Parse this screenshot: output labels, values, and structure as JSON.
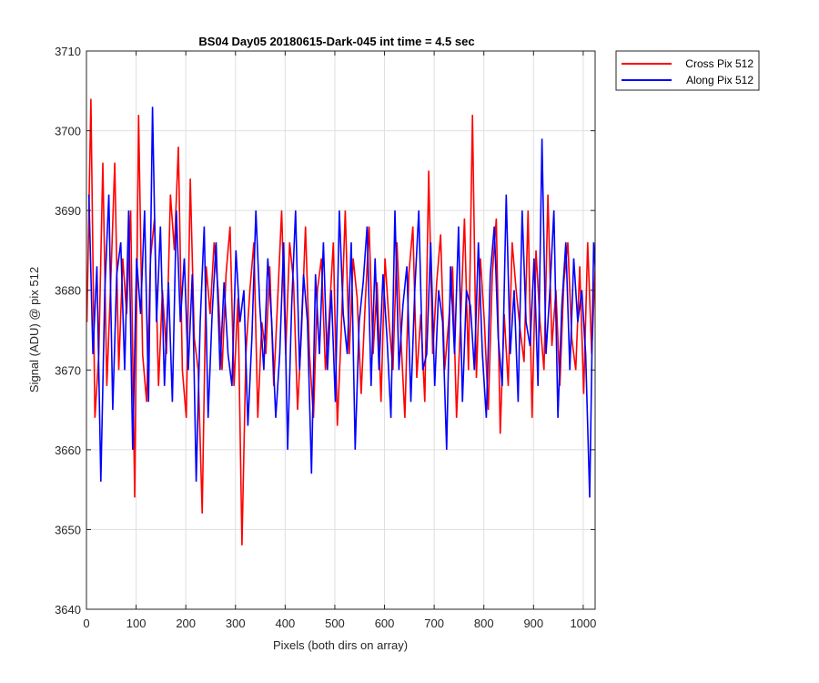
{
  "chart_data": {
    "type": "line",
    "title": "BS04 Day05 20180615-Dark-045 int time = 4.5 sec",
    "xlabel": "Pixels (both dirs on array)",
    "ylabel": "Signal (ADU) @ pix 512",
    "xlim": [
      0,
      1024
    ],
    "ylim": [
      3640,
      3710
    ],
    "xticks": [
      0,
      100,
      200,
      300,
      400,
      500,
      600,
      700,
      800,
      900,
      1000
    ],
    "yticks": [
      3640,
      3650,
      3660,
      3670,
      3680,
      3690,
      3700,
      3710
    ],
    "grid": true,
    "legend_position": "outside-top-right",
    "series": [
      {
        "name": "Cross Pix 512",
        "color": "#ff0000",
        "x_start": 1,
        "x_step": 8,
        "values": [
          3676,
          3704,
          3664,
          3672,
          3696,
          3668,
          3681,
          3696,
          3670,
          3684,
          3677,
          3690,
          3654,
          3702,
          3672,
          3666,
          3684,
          3689,
          3668,
          3680,
          3672,
          3692,
          3685,
          3698,
          3670,
          3664,
          3694,
          3674,
          3670,
          3652,
          3683,
          3677,
          3686,
          3680,
          3670,
          3682,
          3688,
          3668,
          3679,
          3648,
          3672,
          3680,
          3686,
          3664,
          3676,
          3672,
          3683,
          3668,
          3679,
          3690,
          3672,
          3686,
          3681,
          3665,
          3675,
          3688,
          3672,
          3664,
          3680,
          3684,
          3670,
          3677,
          3686,
          3663,
          3675,
          3690,
          3672,
          3684,
          3679,
          3667,
          3678,
          3688,
          3672,
          3681,
          3666,
          3684,
          3676,
          3670,
          3686,
          3674,
          3664,
          3682,
          3688,
          3669,
          3677,
          3666,
          3695,
          3672,
          3681,
          3687,
          3670,
          3676,
          3683,
          3664,
          3676,
          3689,
          3670,
          3702,
          3669,
          3684,
          3676,
          3665,
          3682,
          3689,
          3662,
          3677,
          3668,
          3686,
          3680,
          3675,
          3671,
          3690,
          3664,
          3685,
          3676,
          3670,
          3692,
          3673,
          3680,
          3668,
          3681,
          3686,
          3674,
          3670,
          3683,
          3667,
          3686,
          3672,
          3684
        ]
      },
      {
        "name": "Along Pix 512",
        "color": "#0000ff",
        "x_start": 5,
        "x_step": 8,
        "values": [
          3692,
          3672,
          3683,
          3656,
          3680,
          3692,
          3665,
          3682,
          3686,
          3670,
          3690,
          3660,
          3684,
          3677,
          3690,
          3666,
          3703,
          3676,
          3688,
          3668,
          3681,
          3666,
          3690,
          3676,
          3684,
          3670,
          3682,
          3656,
          3676,
          3688,
          3664,
          3677,
          3686,
          3670,
          3681,
          3672,
          3668,
          3685,
          3676,
          3680,
          3663,
          3674,
          3690,
          3678,
          3670,
          3684,
          3676,
          3664,
          3672,
          3686,
          3660,
          3678,
          3690,
          3670,
          3682,
          3676,
          3657,
          3682,
          3672,
          3686,
          3670,
          3680,
          3666,
          3690,
          3677,
          3672,
          3686,
          3660,
          3676,
          3681,
          3688,
          3668,
          3684,
          3670,
          3682,
          3674,
          3664,
          3690,
          3670,
          3678,
          3683,
          3666,
          3680,
          3690,
          3670,
          3672,
          3686,
          3668,
          3680,
          3676,
          3660,
          3683,
          3672,
          3688,
          3666,
          3680,
          3678,
          3670,
          3686,
          3672,
          3664,
          3682,
          3688,
          3674,
          3668,
          3692,
          3672,
          3680,
          3666,
          3690,
          3676,
          3673,
          3684,
          3668,
          3699,
          3672,
          3680,
          3690,
          3664,
          3678,
          3686,
          3670,
          3684,
          3676,
          3680,
          3672,
          3654,
          3686,
          3678
        ]
      }
    ]
  }
}
